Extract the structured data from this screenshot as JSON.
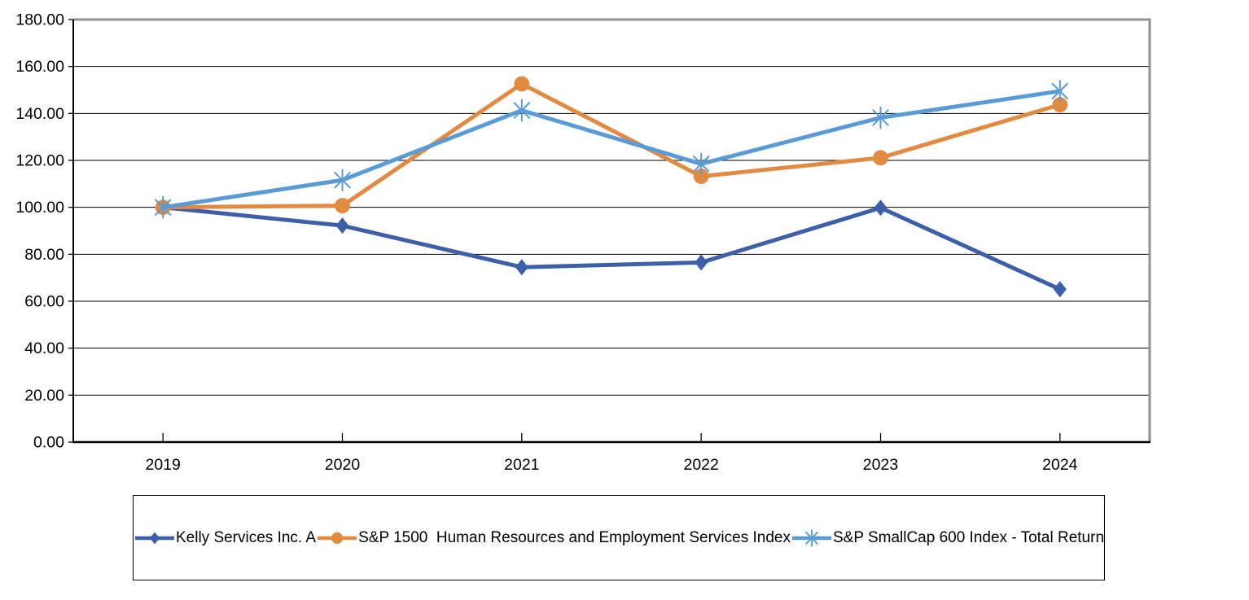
{
  "chart_data": {
    "type": "line",
    "title": "",
    "x": [
      "2019",
      "2020",
      "2021",
      "2022",
      "2023",
      "2024"
    ],
    "series": [
      {
        "name": "Kelly Services Inc. A",
        "color": "#3C5FA8",
        "marker": "diamond",
        "values": [
          100.0,
          92.2,
          74.5,
          76.5,
          99.8,
          65.1
        ]
      },
      {
        "name": "S&P 1500  Human Resources and Employment Services Index",
        "color": "#E08A42",
        "marker": "circle",
        "values": [
          100.0,
          100.7,
          152.6,
          113.2,
          121.1,
          143.7
        ]
      },
      {
        "name": "S&P SmallCap 600 Index - Total Return",
        "color": "#5B9BD5",
        "marker": "star",
        "values": [
          100.0,
          111.6,
          141.3,
          118.5,
          138.2,
          149.5
        ]
      }
    ],
    "xlabel": "",
    "ylabel": "",
    "ylim": [
      0,
      180
    ],
    "ytick_step": 20,
    "y_tick_labels": [
      "0.00",
      "20.00",
      "40.00",
      "60.00",
      "80.00",
      "100.00",
      "120.00",
      "140.00",
      "160.00",
      "180.00"
    ],
    "grid": true,
    "gridline_color": "#000000",
    "axis_color": "#000000",
    "plot_border_color": "#909090",
    "legend_position": "bottom"
  }
}
